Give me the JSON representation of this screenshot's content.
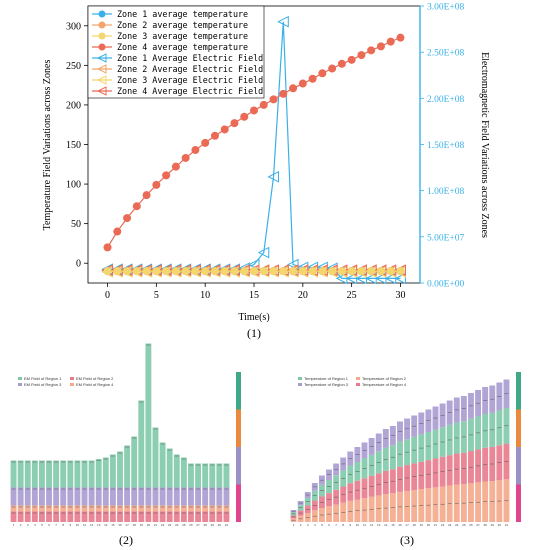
{
  "chart_data": [
    {
      "type": "line",
      "caption": "(1)",
      "xlabel": "Time(s)",
      "ylabel": "Temperature Field Variations across Zones",
      "ylabel_right": "Electromagnetic Field Variations across Zones",
      "xlim": [
        -2,
        32
      ],
      "ylim": [
        -25,
        325
      ],
      "ylim_right": [
        0,
        300000000
      ],
      "x_ticks": [
        "0",
        "5",
        "10",
        "15",
        "20",
        "25",
        "30"
      ],
      "y_ticks": [
        "0",
        "50",
        "100",
        "150",
        "200",
        "250",
        "300"
      ],
      "y_ticks_right": [
        "0.00E+00",
        "5.00E+07",
        "1.00E+08",
        "1.50E+08",
        "2.00E+08",
        "2.50E+08",
        "3.00E+08"
      ],
      "legend_position": "top-left",
      "x": [
        0,
        1,
        2,
        3,
        4,
        5,
        6,
        7,
        8,
        9,
        10,
        11,
        12,
        13,
        14,
        15,
        16,
        17,
        18,
        19,
        20,
        21,
        22,
        23,
        24,
        25,
        26,
        27,
        28,
        29,
        30
      ],
      "series": [
        {
          "name": "Zone 1 average temperature",
          "axis": "left",
          "color": "#3bb0e8",
          "marker": "circle",
          "values": [
            -10,
            -10,
            -10,
            -10,
            -10,
            -10,
            -10,
            -10,
            -10,
            -10,
            -10,
            -10,
            -10,
            -10,
            -10,
            -10,
            -10,
            -10,
            -10,
            -10,
            -10,
            -10,
            -10,
            -10,
            -10,
            -10,
            -10,
            -10,
            -10,
            -10,
            -10
          ]
        },
        {
          "name": "Zone 2 average temperature",
          "axis": "left",
          "color": "#f2a46a",
          "marker": "circle",
          "values": [
            -10,
            -10,
            -10,
            -10,
            -10,
            -10,
            -10,
            -10,
            -10,
            -10,
            -10,
            -10,
            -10,
            -10,
            -10,
            -10,
            -10,
            -10,
            -10,
            -10,
            -10,
            -10,
            -10,
            -10,
            -10,
            -10,
            -10,
            -10,
            -10,
            -10,
            -10
          ]
        },
        {
          "name": "Zone 3 average temperature",
          "axis": "left",
          "color": "#f5d66c",
          "marker": "circle",
          "values": [
            -10,
            -10,
            -10,
            -10,
            -10,
            -10,
            -10,
            -10,
            -10,
            -10,
            -10,
            -10,
            -10,
            -10,
            -10,
            -10,
            -10,
            -10,
            -10,
            -10,
            -10,
            -10,
            -10,
            -10,
            -10,
            -10,
            -10,
            -10,
            -10,
            -10,
            -10
          ]
        },
        {
          "name": "Zone 4 average temperature",
          "axis": "left",
          "color": "#ea6a55",
          "marker": "circle",
          "values": [
            20,
            40,
            57,
            72,
            86,
            99,
            111,
            122,
            133,
            143,
            152,
            161,
            169,
            177,
            185,
            193,
            200,
            207,
            214,
            221,
            227,
            233,
            240,
            246,
            252,
            257,
            263,
            269,
            274,
            280,
            285
          ]
        },
        {
          "name": "Zone 1 Average Electric Field",
          "axis": "right",
          "color": "#3bb0e8",
          "marker": "left-triangle",
          "values": [
            15000000,
            15000000,
            15000000,
            15000000,
            15000000,
            15000000,
            15000000,
            15000000,
            15000000,
            15000000,
            15000000,
            15000000,
            15000000,
            15000000,
            16000000,
            20000000,
            33000000,
            115000000,
            283000000,
            20000000,
            17000000,
            17000000,
            17000000,
            16000000,
            5000000,
            5000000,
            5000000,
            5000000,
            5000000,
            5000000,
            5000000
          ]
        },
        {
          "name": "Zone 2 Average Electric Field",
          "axis": "right",
          "color": "#f2a46a",
          "marker": "left-triangle",
          "values": [
            13000000,
            13000000,
            13000000,
            13000000,
            13000000,
            13000000,
            13000000,
            13000000,
            13000000,
            13000000,
            13000000,
            13000000,
            13000000,
            13000000,
            13000000,
            13000000,
            13000000,
            13000000,
            13000000,
            13000000,
            13000000,
            13000000,
            13000000,
            13000000,
            13000000,
            13000000,
            13000000,
            13000000,
            13000000,
            13000000,
            13000000
          ]
        },
        {
          "name": "Zone 3 Average Electric Field",
          "axis": "right",
          "color": "#f5d66c",
          "marker": "left-triangle",
          "values": [
            12000000,
            12000000,
            12000000,
            12000000,
            12000000,
            12000000,
            12000000,
            12000000,
            12000000,
            12000000,
            12000000,
            12000000,
            12000000,
            12000000,
            12000000,
            12000000,
            12000000,
            12000000,
            12000000,
            12000000,
            12000000,
            12000000,
            12000000,
            12000000,
            12000000,
            12000000,
            12000000,
            12000000,
            12000000,
            12000000,
            12000000
          ]
        },
        {
          "name": "Zone 4 Average Electric Field",
          "axis": "right",
          "color": "#ea6a55",
          "marker": "left-triangle",
          "values": [
            14000000,
            14000000,
            14000000,
            14000000,
            14000000,
            14000000,
            14000000,
            14000000,
            14000000,
            14000000,
            14000000,
            14000000,
            14000000,
            14000000,
            14000000,
            14000000,
            14000000,
            14000000,
            14000000,
            14000000,
            14000000,
            14000000,
            14000000,
            14000000,
            14000000,
            14000000,
            14000000,
            14000000,
            14000000,
            14000000,
            14000000
          ]
        }
      ]
    },
    {
      "type": "area",
      "caption": "(2)",
      "legend": [
        "EM Field of Region 1",
        "EM Field of Region 2",
        "EM Field of Region 3",
        "EM Field of Region 4"
      ],
      "colors": [
        "#7fc9a8",
        "#e87a8c",
        "#a89bd0",
        "#f4a98a"
      ],
      "side_bar_colors": [
        "#3ea889",
        "#e98a3f",
        "#9b91c6",
        "#e0458d"
      ],
      "ylim": [
        0,
        100
      ],
      "x": [
        1,
        2,
        3,
        4,
        5,
        6,
        7,
        8,
        9,
        10,
        11,
        12,
        13,
        14,
        15,
        16,
        17,
        18,
        19,
        20,
        21,
        22,
        23,
        24,
        25,
        26,
        27,
        28,
        29,
        30,
        31
      ],
      "series": [
        {
          "name": "EM Field of Region 1",
          "values": [
            18,
            18,
            18,
            18,
            18,
            18,
            18,
            18,
            18,
            18,
            18,
            18,
            19,
            20,
            22,
            24,
            28,
            34,
            58,
            96,
            40,
            30,
            26,
            22,
            20,
            16,
            16,
            16,
            16,
            16,
            16
          ]
        },
        {
          "name": "EM Field of Region 2",
          "values": [
            7,
            7,
            7,
            7,
            7,
            7,
            7,
            7,
            7,
            7,
            7,
            7,
            7,
            7,
            7,
            7,
            7,
            7,
            7,
            7,
            7,
            7,
            7,
            7,
            7,
            7,
            7,
            7,
            7,
            7,
            7
          ]
        },
        {
          "name": "EM Field of Region 3",
          "values": [
            12,
            12,
            12,
            12,
            12,
            12,
            12,
            12,
            12,
            12,
            12,
            12,
            12,
            12,
            12,
            12,
            12,
            12,
            12,
            12,
            12,
            12,
            12,
            12,
            12,
            12,
            12,
            12,
            12,
            12,
            12
          ]
        },
        {
          "name": "EM Field of Region 4",
          "values": [
            4,
            4,
            4,
            4,
            4,
            4,
            4,
            4,
            4,
            4,
            4,
            4,
            4,
            4,
            4,
            4,
            4,
            4,
            4,
            4,
            4,
            4,
            4,
            4,
            4,
            4,
            4,
            4,
            4,
            4,
            4
          ]
        }
      ]
    },
    {
      "type": "area",
      "caption": "(3)",
      "legend": [
        "Temperature of Region 1",
        "Temperature of Region 2",
        "Temperature of Region 3",
        "Temperature of Region 4"
      ],
      "colors": [
        "#7fc9a8",
        "#f4a98a",
        "#a89bd0",
        "#e87a8c"
      ],
      "side_bar_colors": [
        "#3ea889",
        "#e98a3f",
        "#9b91c6",
        "#e0458d"
      ],
      "ylim": [
        0,
        100
      ],
      "x": [
        1,
        2,
        3,
        4,
        5,
        6,
        7,
        8,
        9,
        10,
        11,
        12,
        13,
        14,
        15,
        16,
        17,
        18,
        19,
        20,
        21,
        22,
        23,
        24,
        25,
        26,
        27,
        28,
        29,
        30,
        31
      ],
      "stack_total": [
        8,
        14,
        20,
        26,
        31,
        35,
        39,
        43,
        47,
        50,
        53,
        56,
        59,
        62,
        64,
        67,
        69,
        71,
        73,
        75,
        77,
        79,
        81,
        83,
        84,
        86,
        88,
        90,
        91,
        93,
        95
      ]
    }
  ]
}
